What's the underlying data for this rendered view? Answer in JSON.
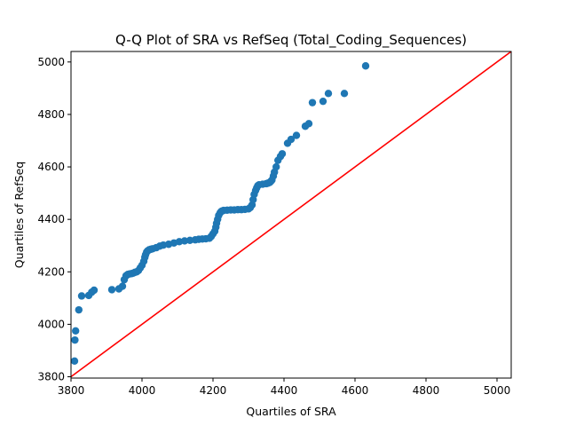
{
  "chart_data": {
    "type": "scatter",
    "title": "Q-Q Plot of SRA vs RefSeq (Total_Coding_Sequences)",
    "xlabel": "Quartiles of SRA",
    "ylabel": "Quartiles of RefSeq",
    "xlim": [
      3800,
      5040
    ],
    "ylim": [
      3795,
      5040
    ],
    "xticks": [
      3800,
      4000,
      4200,
      4400,
      4600,
      4800,
      5000
    ],
    "yticks": [
      3800,
      4000,
      4200,
      4400,
      4600,
      4800,
      5000
    ],
    "grid": false,
    "marker_color": "#1f77b4",
    "reference_line": {
      "color": "#ff0000",
      "x": [
        3800,
        5040
      ],
      "y": [
        3800,
        5040
      ]
    },
    "x": [
      3810,
      3811,
      3813,
      3822,
      3830,
      3850,
      3858,
      3865,
      3915,
      3935,
      3945,
      3950,
      3955,
      3960,
      3965,
      3970,
      3975,
      3980,
      3985,
      3990,
      3995,
      4000,
      4005,
      4008,
      4010,
      4013,
      4016,
      4020,
      4025,
      4030,
      4040,
      4050,
      4060,
      4075,
      4090,
      4105,
      4120,
      4135,
      4150,
      4160,
      4170,
      4180,
      4190,
      4195,
      4200,
      4205,
      4208,
      4210,
      4213,
      4216,
      4220,
      4223,
      4226,
      4230,
      4240,
      4250,
      4260,
      4270,
      4280,
      4290,
      4300,
      4305,
      4310,
      4313,
      4316,
      4320,
      4323,
      4326,
      4330,
      4340,
      4350,
      4355,
      4360,
      4363,
      4366,
      4370,
      4373,
      4378,
      4383,
      4390,
      4395,
      4410,
      4420,
      4435,
      4460,
      4470,
      4480,
      4510,
      4525,
      4570,
      4630
    ],
    "y": [
      3860,
      3940,
      3975,
      4055,
      4108,
      4110,
      4122,
      4130,
      4132,
      4135,
      4145,
      4170,
      4185,
      4190,
      4192,
      4193,
      4195,
      4198,
      4200,
      4205,
      4215,
      4225,
      4240,
      4255,
      4265,
      4275,
      4280,
      4284,
      4286,
      4288,
      4292,
      4298,
      4302,
      4305,
      4310,
      4315,
      4318,
      4320,
      4322,
      4324,
      4325,
      4326,
      4328,
      4335,
      4345,
      4355,
      4370,
      4385,
      4400,
      4415,
      4425,
      4430,
      4432,
      4434,
      4435,
      4436,
      4436,
      4437,
      4437,
      4438,
      4440,
      4445,
      4455,
      4475,
      4495,
      4510,
      4520,
      4528,
      4532,
      4534,
      4536,
      4538,
      4541,
      4545,
      4550,
      4565,
      4580,
      4600,
      4625,
      4640,
      4650,
      4690,
      4705,
      4720,
      4755,
      4765,
      4845,
      4850,
      4880,
      4880,
      4985
    ]
  }
}
